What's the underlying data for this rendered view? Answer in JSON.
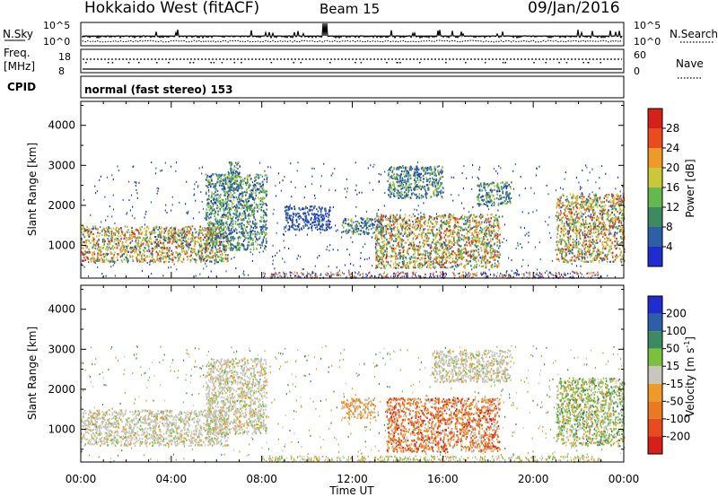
{
  "header": {
    "radar": "Hokkaido West (fitACF)",
    "beam": "Beam 15",
    "date": "09/Jan/2016"
  },
  "noise_panel": {
    "left_label": "N.Sky",
    "left_ticks": [
      "10^5",
      "10^0"
    ],
    "right_ticks": [
      "10^5",
      "10^0"
    ],
    "right_label": "N.Search"
  },
  "freq_panel": {
    "left_label_top": "Freq.",
    "left_label_bottom": "[MHz]",
    "left_ticks": [
      "18",
      "8"
    ],
    "right_ticks": [
      "60",
      "0"
    ],
    "right_label": "Nave"
  },
  "cpid": {
    "label": "CPID",
    "text": "normal (fast stereo) 153"
  },
  "x_axis": {
    "ticks": [
      "00:00",
      "04:00",
      "08:00",
      "12:00",
      "16:00",
      "20:00",
      "00:00"
    ],
    "label": "Time UT"
  },
  "colors": {
    "power": [
      "#1f2dcf",
      "#2e5fa6",
      "#3c8a60",
      "#64b850",
      "#c8c83a",
      "#ee9a28",
      "#ea4c1e",
      "#d6201a"
    ],
    "velocity": [
      "#1f2dcf",
      "#2e5fa6",
      "#3c8a60",
      "#7bc13f",
      "#c7c6bc",
      "#ee9a28",
      "#ea7a22",
      "#e84b1d",
      "#d6201a"
    ]
  },
  "chart_data": [
    {
      "type": "heatmap",
      "name": "power",
      "xlabel": "",
      "ylabel": "Slant Range [km]",
      "xlim": [
        0,
        24
      ],
      "ylim": [
        180,
        4600
      ],
      "yticks": [
        1000,
        2000,
        3000,
        4000
      ],
      "colorbar": {
        "label": "Power [dB]",
        "ticks": [
          "4",
          "8",
          "12",
          "16",
          "20",
          "24",
          "28"
        ],
        "range": [
          0,
          30
        ]
      },
      "echo_regions": [
        {
          "t0": 0.0,
          "t1": 6.5,
          "r0": 600,
          "r1": 1500,
          "level": "high",
          "description": "dense band rising from ~750 km"
        },
        {
          "t0": 5.5,
          "t1": 8.2,
          "r0": 900,
          "r1": 2800,
          "level": "medium"
        },
        {
          "t0": 6.5,
          "t1": 7.0,
          "r0": 2400,
          "r1": 3100,
          "level": "medium"
        },
        {
          "t0": 9.0,
          "t1": 11.0,
          "r0": 1400,
          "r1": 2000,
          "level": "low"
        },
        {
          "t0": 11.5,
          "t1": 13.5,
          "r0": 1300,
          "r1": 1700,
          "level": "medium"
        },
        {
          "t0": 13.0,
          "t1": 18.5,
          "r0": 450,
          "r1": 1800,
          "level": "high"
        },
        {
          "t0": 13.5,
          "t1": 16.0,
          "r0": 2200,
          "r1": 3000,
          "level": "medium"
        },
        {
          "t0": 17.5,
          "t1": 19.0,
          "r0": 2000,
          "r1": 2600,
          "level": "medium"
        },
        {
          "t0": 21.0,
          "t1": 24.0,
          "r0": 600,
          "r1": 2300,
          "level": "high"
        }
      ]
    },
    {
      "type": "heatmap",
      "name": "velocity",
      "xlabel": "Time UT",
      "ylabel": "Slant Range [km]",
      "xlim": [
        0,
        24
      ],
      "ylim": [
        180,
        4600
      ],
      "yticks": [
        1000,
        2000,
        3000,
        4000
      ],
      "colorbar": {
        "label": "Velocity [m s",
        "label_sup": "-1",
        "label_end": "]",
        "ticks": [
          "200",
          "100",
          "50",
          "15",
          "-15",
          "-50",
          "-100",
          "-200"
        ],
        "range": [
          -250,
          250
        ]
      },
      "echo_regions": [
        {
          "t0": 0.0,
          "t1": 6.5,
          "r0": 600,
          "r1": 1500,
          "level": "near-zero"
        },
        {
          "t0": 5.5,
          "t1": 8.2,
          "r0": 900,
          "r1": 2800,
          "level": "near-zero"
        },
        {
          "t0": 11.5,
          "t1": 13.0,
          "r0": 1300,
          "r1": 1800,
          "level": "negative"
        },
        {
          "t0": 13.5,
          "t1": 18.5,
          "r0": 450,
          "r1": 1800,
          "level": "strongly negative"
        },
        {
          "t0": 15.5,
          "t1": 19.0,
          "r0": 2200,
          "r1": 3000,
          "level": "near-zero"
        },
        {
          "t0": 21.0,
          "t1": 24.0,
          "r0": 600,
          "r1": 2300,
          "level": "mixed"
        }
      ]
    }
  ]
}
